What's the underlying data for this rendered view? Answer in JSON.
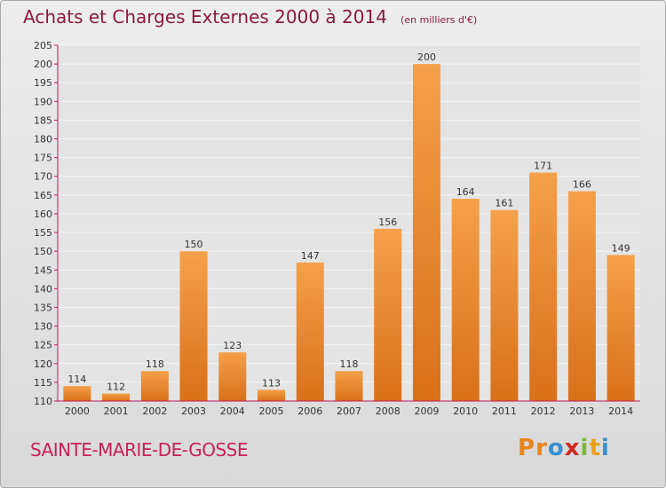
{
  "header": {
    "title": "Achats et Charges Externes 2000 à 2014",
    "unit": "(en milliers d'€)"
  },
  "footer": {
    "commune": "SAINTE-MARIE-DE-GOSSE",
    "logo": {
      "letters": [
        "P",
        "r",
        "o",
        "x",
        "i",
        "t",
        "i"
      ],
      "colors": [
        "#e8841a",
        "#e8841a",
        "#3a8fd0",
        "#d0281e",
        "#7ab83a",
        "#e8a21a",
        "#3a8fd0"
      ]
    }
  },
  "colors": {
    "bar_top": "#f5a04a",
    "bar_bottom": "#d9701a",
    "axis": "#c2185b",
    "title": "#8a1a3e"
  },
  "chart_data": {
    "type": "bar",
    "categories": [
      "2000",
      "2001",
      "2002",
      "2003",
      "2004",
      "2005",
      "2006",
      "2007",
      "2008",
      "2009",
      "2010",
      "2011",
      "2012",
      "2013",
      "2014"
    ],
    "values": [
      114,
      112,
      118,
      150,
      123,
      113,
      147,
      118,
      156,
      200,
      164,
      161,
      171,
      166,
      149
    ],
    "ylim": [
      110,
      205
    ],
    "yticks": [
      110,
      115,
      120,
      125,
      130,
      135,
      140,
      145,
      150,
      155,
      160,
      165,
      170,
      175,
      180,
      185,
      190,
      195,
      200,
      205
    ],
    "grid": true,
    "data_labels": true
  }
}
